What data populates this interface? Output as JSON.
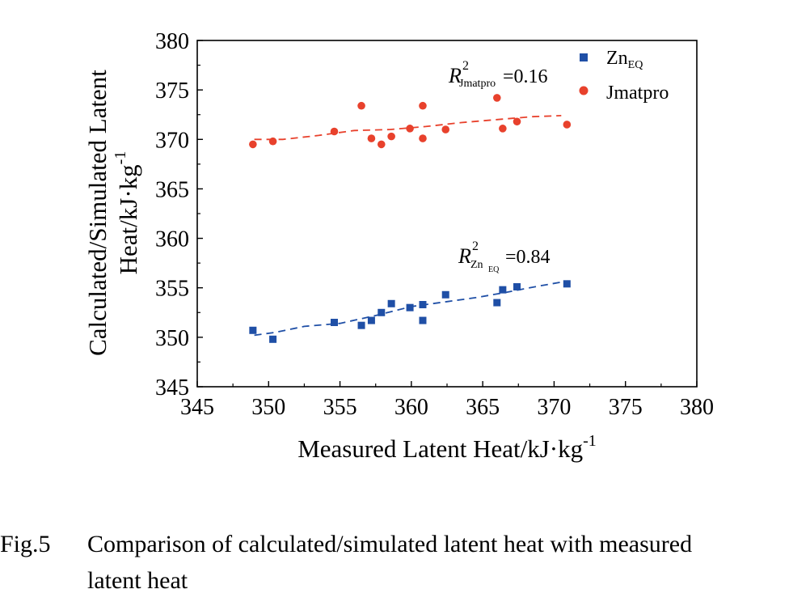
{
  "chart_data": {
    "type": "scatter",
    "xlabel": "Measured Latent Heat/kJ·kg",
    "xlabel_sup": "-1",
    "ylabel_line1": "Calculated/Simulated Latent",
    "ylabel_line2": "Heat/kJ·kg",
    "ylabel_sup": "-1",
    "xlim": [
      345,
      380
    ],
    "ylim": [
      345,
      380
    ],
    "x_ticks": [
      345,
      350,
      355,
      360,
      365,
      370,
      375,
      380
    ],
    "y_ticks": [
      345,
      350,
      355,
      360,
      365,
      370,
      375,
      380
    ],
    "grid": false,
    "legend_position": "top-right",
    "series": [
      {
        "name_main": "Zn",
        "name_sub": "EQ",
        "marker": "square",
        "color": "#1f4fa6",
        "points": [
          [
            348.9,
            350.7
          ],
          [
            350.3,
            349.8
          ],
          [
            354.6,
            351.5
          ],
          [
            356.5,
            351.2
          ],
          [
            357.2,
            351.7
          ],
          [
            357.9,
            352.5
          ],
          [
            358.6,
            353.4
          ],
          [
            359.9,
            353.0
          ],
          [
            360.8,
            353.3
          ],
          [
            360.8,
            351.7
          ],
          [
            362.4,
            354.3
          ],
          [
            366.0,
            353.5
          ],
          [
            366.4,
            354.8
          ],
          [
            367.4,
            355.1
          ],
          [
            370.9,
            355.4
          ]
        ],
        "trend": [
          [
            349.0,
            350.2
          ],
          [
            350.5,
            350.5
          ],
          [
            352.5,
            351.1
          ],
          [
            355.0,
            351.4
          ],
          [
            357.5,
            352.2
          ],
          [
            360.0,
            353.1
          ],
          [
            362.5,
            353.6
          ],
          [
            364.5,
            354.0
          ],
          [
            366.5,
            354.5
          ],
          [
            369.0,
            355.2
          ],
          [
            371.0,
            355.7
          ]
        ],
        "annotation": {
          "R": "R",
          "sup": "2",
          "sub_main": "Zn",
          "sub_sub": "EQ",
          "value": "=0.84"
        }
      },
      {
        "name_main": "Jmatpro",
        "name_sub": "",
        "marker": "circle",
        "color": "#e8412c",
        "points": [
          [
            348.9,
            369.5
          ],
          [
            350.3,
            369.8
          ],
          [
            354.6,
            370.8
          ],
          [
            356.5,
            373.4
          ],
          [
            357.2,
            370.1
          ],
          [
            357.9,
            369.5
          ],
          [
            358.6,
            370.3
          ],
          [
            359.9,
            371.1
          ],
          [
            360.8,
            373.4
          ],
          [
            360.8,
            370.1
          ],
          [
            362.4,
            371.0
          ],
          [
            366.0,
            374.2
          ],
          [
            366.4,
            371.1
          ],
          [
            367.4,
            371.8
          ],
          [
            370.9,
            371.5
          ]
        ],
        "trend": [
          [
            349.0,
            370.0
          ],
          [
            351.0,
            370.0
          ],
          [
            353.5,
            370.4
          ],
          [
            356.0,
            370.9
          ],
          [
            358.5,
            371.0
          ],
          [
            361.0,
            371.3
          ],
          [
            363.5,
            371.7
          ],
          [
            366.0,
            372.0
          ],
          [
            368.5,
            372.3
          ],
          [
            370.5,
            372.4
          ]
        ],
        "annotation": {
          "R": "R",
          "sup": "2",
          "sub_main": "Jmatpro",
          "sub_sub": "",
          "value": "=0.16"
        }
      }
    ]
  },
  "caption": {
    "label": "Fig.5",
    "text_line1": "Comparison of calculated/simulated latent heat with measured",
    "text_line2": "latent heat"
  }
}
